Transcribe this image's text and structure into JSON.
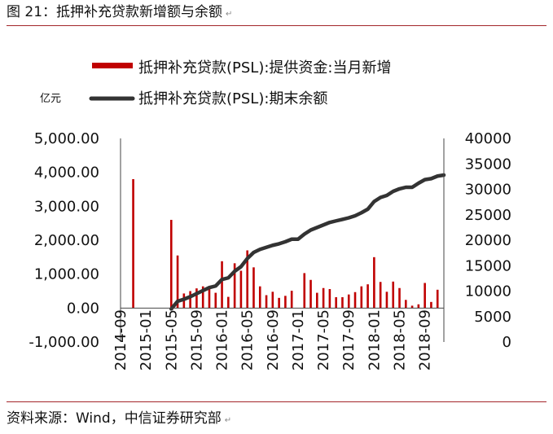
{
  "figure": {
    "title": "图 21：抵押补充贷款新增额与余额",
    "source": "资料来源：Wind，中信证券研究部",
    "paragraph_mark": "↵",
    "rule_color": "#a3262a"
  },
  "chart_data": {
    "type": "bar+line",
    "unit_label": "亿元",
    "categories": [
      "2014-09",
      "2014-10",
      "2014-11",
      "2014-12",
      "2015-01",
      "2015-02",
      "2015-03",
      "2015-04",
      "2015-05",
      "2015-06",
      "2015-07",
      "2015-08",
      "2015-09",
      "2015-10",
      "2015-11",
      "2015-12",
      "2016-01",
      "2016-02",
      "2016-03",
      "2016-04",
      "2016-05",
      "2016-06",
      "2016-07",
      "2016-08",
      "2016-09",
      "2016-10",
      "2016-11",
      "2016-12",
      "2017-01",
      "2017-02",
      "2017-03",
      "2017-04",
      "2017-05",
      "2017-06",
      "2017-07",
      "2017-08",
      "2017-09",
      "2017-10",
      "2017-11",
      "2017-12",
      "2018-01",
      "2018-02",
      "2018-03",
      "2018-04",
      "2018-05",
      "2018-06",
      "2018-07",
      "2018-08",
      "2018-09",
      "2018-10",
      "2018-11",
      "2018-12"
    ],
    "tick_labels": [
      "2014-09",
      "2015-01",
      "2015-05",
      "2015-09",
      "2016-01",
      "2016-05",
      "2016-09",
      "2017-01",
      "2017-05",
      "2017-09",
      "2018-01",
      "2018-05",
      "2018-09"
    ],
    "series": [
      {
        "name": "抵押补充贷款(PSL):提供资金:当月新增",
        "type": "bar",
        "axis": "left",
        "color": "#c00000",
        "values": [
          0,
          0,
          3800,
          0,
          0,
          0,
          0,
          0,
          2600,
          1550,
          430,
          500,
          580,
          640,
          640,
          450,
          1380,
          330,
          1320,
          1100,
          1700,
          1200,
          640,
          380,
          480,
          300,
          360,
          510,
          0,
          1030,
          830,
          450,
          590,
          560,
          320,
          320,
          400,
          470,
          640,
          700,
          1500,
          770,
          480,
          780,
          590,
          240,
          70,
          110,
          740,
          180,
          540,
          0
        ]
      },
      {
        "name": "抵押补充贷款(PSL):期末余额",
        "type": "line",
        "axis": "right",
        "color": "#333333",
        "values": [
          null,
          null,
          null,
          null,
          null,
          null,
          null,
          null,
          6500,
          8000,
          8400,
          8900,
          9500,
          10100,
          10700,
          11000,
          12300,
          12600,
          13900,
          14800,
          16400,
          17600,
          18200,
          18600,
          19000,
          19300,
          19700,
          20200,
          20200,
          21200,
          22000,
          22500,
          23000,
          23500,
          23800,
          24100,
          24400,
          24800,
          25400,
          26100,
          27600,
          28400,
          28800,
          29600,
          30100,
          30400,
          30400,
          31200,
          31900,
          32100,
          32600,
          32800
        ]
      }
    ],
    "left_axis": {
      "range": [
        -1000,
        5000
      ],
      "ticks": [
        "5,000.00",
        "4,000.00",
        "3,000.00",
        "2,000.00",
        "1,000.00",
        "0.00",
        "-1,000.00"
      ]
    },
    "right_axis": {
      "range": [
        0,
        40000
      ],
      "ticks": [
        "40000",
        "35000",
        "30000",
        "25000",
        "20000",
        "15000",
        "10000",
        "5000",
        "0"
      ]
    },
    "grid": false,
    "legend_position": "top"
  }
}
